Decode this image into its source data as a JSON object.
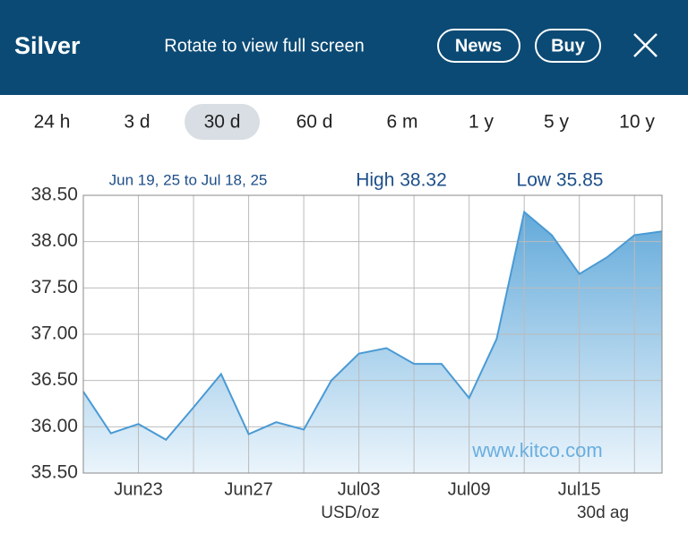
{
  "header": {
    "title": "Silver",
    "hint": "Rotate to view full screen",
    "buttons": [
      "News",
      "Buy"
    ]
  },
  "tabs": {
    "items": [
      "24 h",
      "3 d",
      "30 d",
      "60 d",
      "6 m",
      "1 y",
      "5 y",
      "10 y"
    ],
    "selected": "30 d"
  },
  "chart_data": {
    "type": "area",
    "subtitle": "Jun 19, 25 to Jul 18, 25",
    "high_label": "High 38.32",
    "low_label": "Low 35.85",
    "watermark": "www.kitco.com",
    "unit_label": "USD/oz",
    "range_label": "30d ag",
    "categories": [
      null,
      null,
      "Jun23",
      null,
      null,
      null,
      "Jun27",
      null,
      null,
      null,
      "Jul03",
      null,
      null,
      null,
      "Jul09",
      null,
      null,
      null,
      "Jul15",
      null,
      null,
      null
    ],
    "series": [
      {
        "name": "Silver",
        "color": "#4a9ad4",
        "values": [
          36.38,
          35.93,
          36.03,
          35.86,
          36.21,
          36.57,
          35.92,
          36.05,
          35.97,
          36.5,
          36.79,
          36.85,
          36.68,
          36.68,
          36.31,
          36.95,
          38.32,
          38.07,
          37.65,
          37.83,
          38.07,
          38.11
        ]
      }
    ],
    "ylim": [
      35.5,
      38.5
    ],
    "yticks": [
      {
        "value": 35.5,
        "label": "35.50"
      },
      {
        "value": 36,
        "label": "36.00"
      },
      {
        "value": 36.5,
        "label": "36.50"
      },
      {
        "value": 37,
        "label": "37.00"
      },
      {
        "value": 37.5,
        "label": "37.50"
      },
      {
        "value": 38,
        "label": "38.00"
      },
      {
        "value": 38.5,
        "label": "38.50"
      }
    ],
    "grid": true
  }
}
